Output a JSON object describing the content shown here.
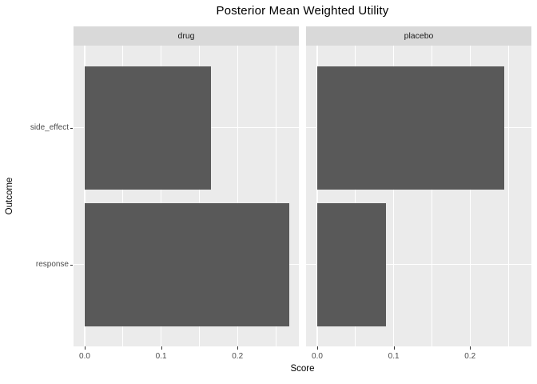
{
  "chart_data": {
    "type": "bar",
    "orientation": "horizontal",
    "title": "Posterior Mean Weighted Utility",
    "xlabel": "Score",
    "ylabel": "Outcome",
    "categories": [
      "side_effect",
      "response"
    ],
    "facets": [
      {
        "name": "drug",
        "values": [
          0.165,
          0.268
        ]
      },
      {
        "name": "placebo",
        "values": [
          0.245,
          0.09
        ]
      }
    ],
    "x_major_tick_labels": [
      "0.0",
      "0.1",
      "0.2"
    ],
    "x_major_tick_values": [
      0.0,
      0.1,
      0.2
    ],
    "x_minor_tick_values": [
      0.05,
      0.15,
      0.25
    ],
    "xlim": [
      -0.0147,
      0.2803
    ],
    "grid": true,
    "legend": "none",
    "colors": {
      "bar": "#595959",
      "panel_bg": "#EBEBEB",
      "strip_bg": "#D9D9D9",
      "grid": "#FFFFFF",
      "axis_text": "#4D4D4D",
      "title_text": "#000000"
    }
  }
}
